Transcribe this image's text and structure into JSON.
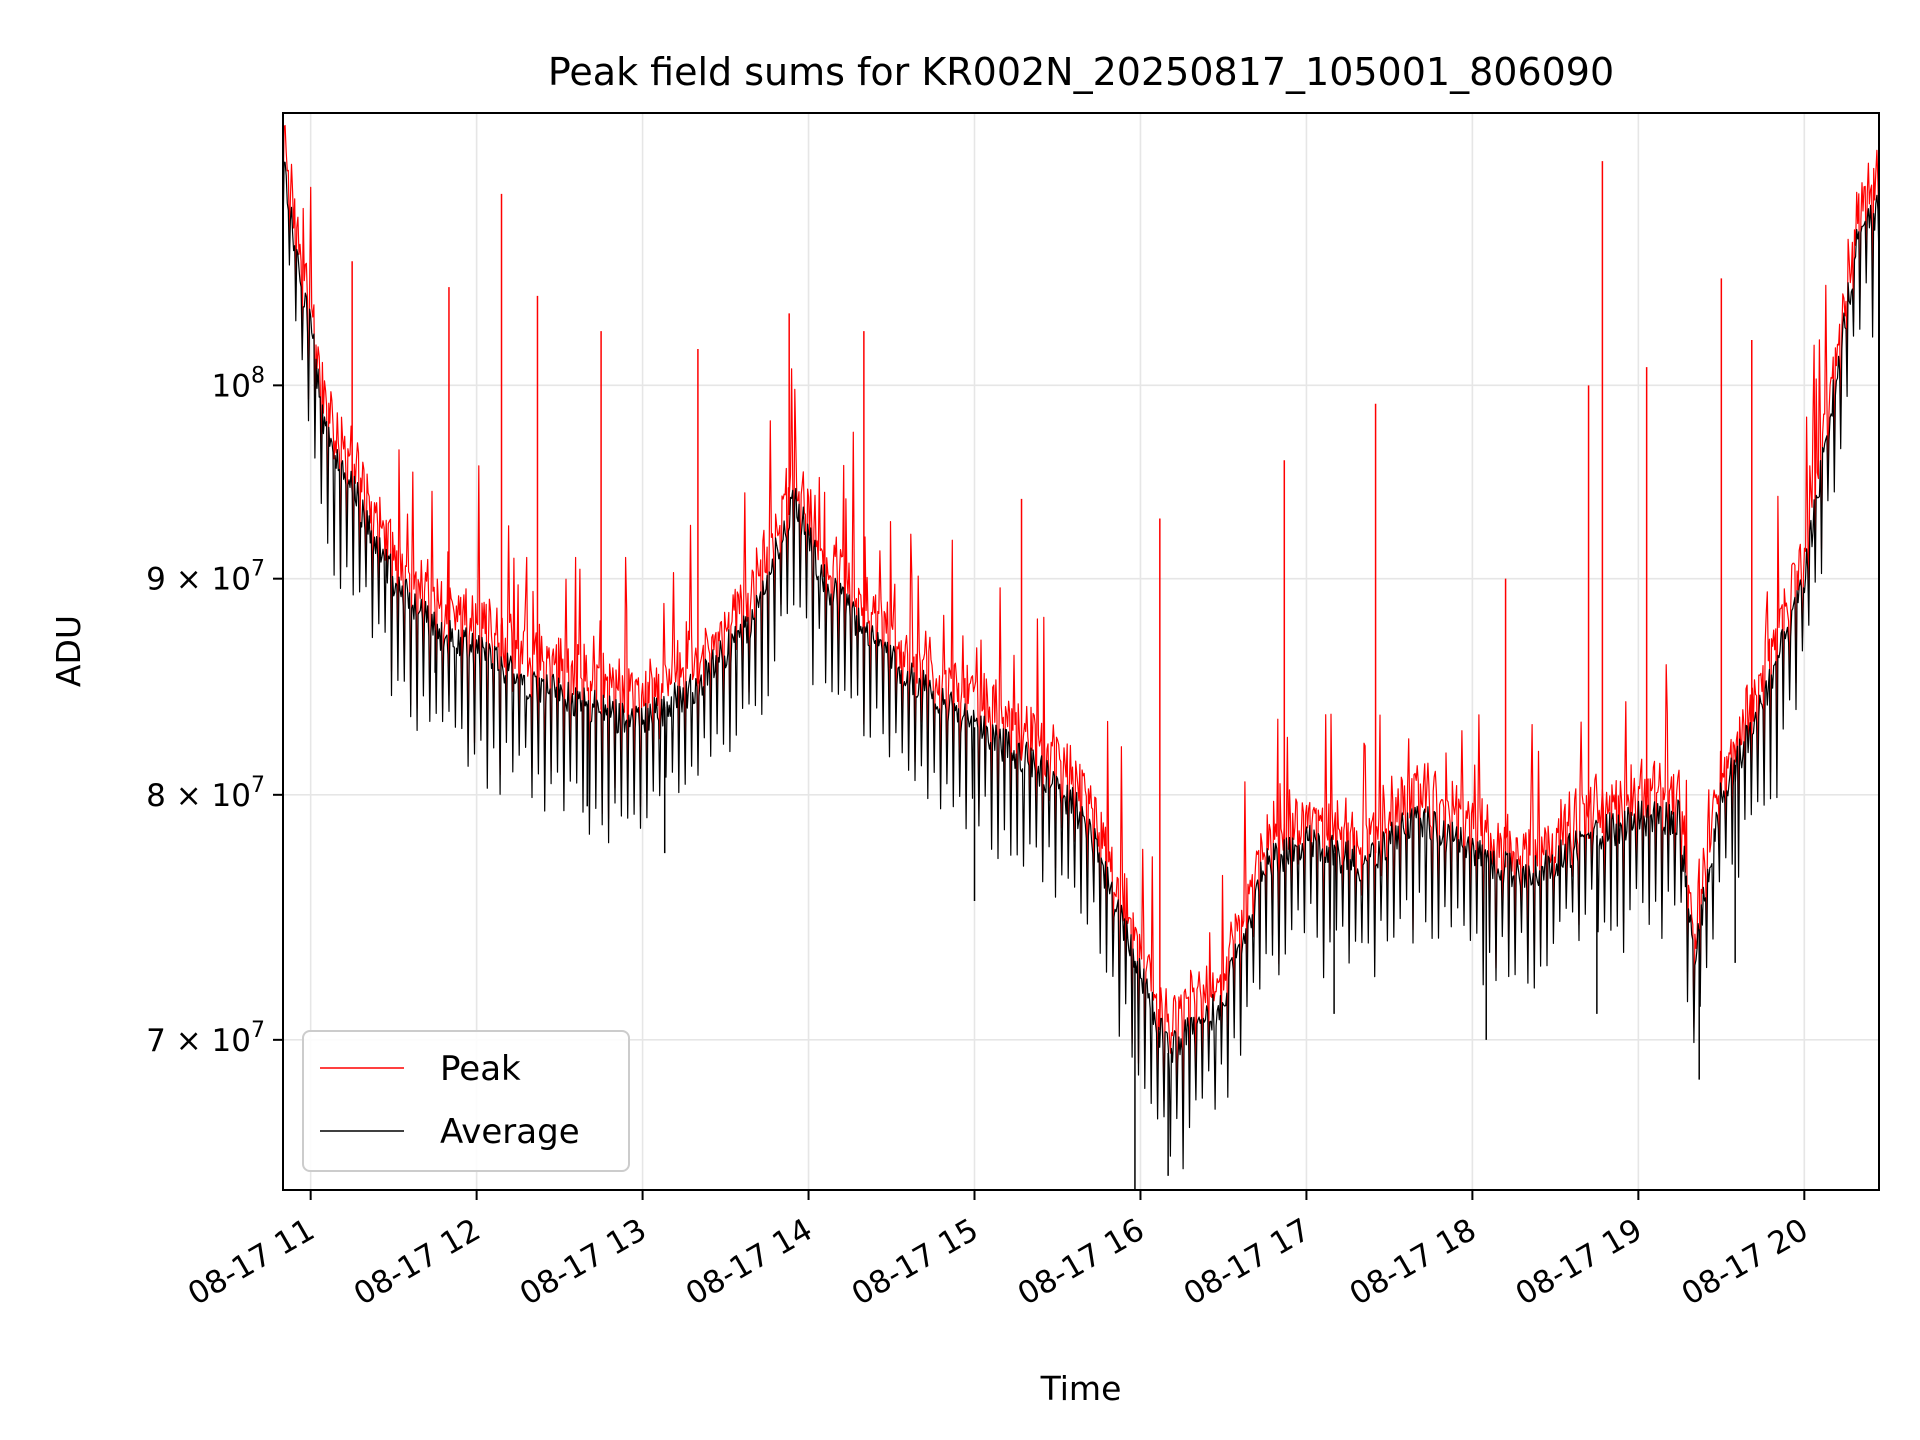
{
  "chart_data": {
    "type": "line",
    "title": "Peak field sums for KR002N_20250817_105001_806090",
    "xlabel": "Time",
    "ylabel": "ADU",
    "y_scale": "log",
    "grid": true,
    "legend_location": "lower-left",
    "xlim": [
      "2025-08-17 10:50",
      "2025-08-17 20:27"
    ],
    "ylim": [
      64500000,
      116000000
    ],
    "x_ticks": [
      {
        "value": "2025-08-17 11:00",
        "label": "08-17 11"
      },
      {
        "value": "2025-08-17 12:00",
        "label": "08-17 12"
      },
      {
        "value": "2025-08-17 13:00",
        "label": "08-17 13"
      },
      {
        "value": "2025-08-17 14:00",
        "label": "08-17 14"
      },
      {
        "value": "2025-08-17 15:00",
        "label": "08-17 15"
      },
      {
        "value": "2025-08-17 16:00",
        "label": "08-17 16"
      },
      {
        "value": "2025-08-17 17:00",
        "label": "08-17 17"
      },
      {
        "value": "2025-08-17 18:00",
        "label": "08-17 18"
      },
      {
        "value": "2025-08-17 19:00",
        "label": "08-17 19"
      },
      {
        "value": "2025-08-17 20:00",
        "label": "08-17 20"
      }
    ],
    "y_ticks": [
      {
        "value": 70000000,
        "mantissa": "7",
        "base": "10",
        "exp": "7"
      },
      {
        "value": 80000000,
        "mantissa": "8",
        "base": "10",
        "exp": "7"
      },
      {
        "value": 90000000,
        "mantissa": "9",
        "base": "10",
        "exp": "7"
      },
      {
        "value": 100000000,
        "mantissa": "",
        "base": "10",
        "exp": "8"
      }
    ],
    "baseline_time": [
      "2025-08-17 10:50",
      "2025-08-17 10:55",
      "2025-08-17 11:00",
      "2025-08-17 11:05",
      "2025-08-17 11:10",
      "2025-08-17 11:20",
      "2025-08-17 11:30",
      "2025-08-17 11:45",
      "2025-08-17 12:00",
      "2025-08-17 12:20",
      "2025-08-17 12:40",
      "2025-08-17 13:00",
      "2025-08-17 13:20",
      "2025-08-17 13:40",
      "2025-08-17 13:55",
      "2025-08-17 14:05",
      "2025-08-17 14:30",
      "2025-08-17 15:00",
      "2025-08-17 15:20",
      "2025-08-17 15:40",
      "2025-08-17 15:55",
      "2025-08-17 16:10",
      "2025-08-17 16:30",
      "2025-08-17 16:45",
      "2025-08-17 17:00",
      "2025-08-17 17:20",
      "2025-08-17 17:40",
      "2025-08-17 18:00",
      "2025-08-17 18:20",
      "2025-08-17 18:40",
      "2025-08-17 19:00",
      "2025-08-17 19:15",
      "2025-08-17 19:20",
      "2025-08-17 19:30",
      "2025-08-17 19:45",
      "2025-08-17 20:00",
      "2025-08-17 20:10",
      "2025-08-17 20:20",
      "2025-08-17 20:27"
    ],
    "baseline_adu": [
      113000000,
      107000000,
      103000000,
      98000000,
      96000000,
      93000000,
      90000000,
      87500000,
      86500000,
      85000000,
      84000000,
      83200000,
      85000000,
      88000000,
      94000000,
      90000000,
      86000000,
      83000000,
      81500000,
      79000000,
      74000000,
      69500000,
      71500000,
      77000000,
      78000000,
      77000000,
      79000000,
      77500000,
      76500000,
      78000000,
      79000000,
      79000000,
      73000000,
      80000000,
      84000000,
      90000000,
      99000000,
      109000000,
      110000000
    ],
    "series": [
      {
        "name": "Peak",
        "color": "#ff0000",
        "spikes": [
          {
            "time": "2025-08-17 11:15",
            "adu": 107000000
          },
          {
            "time": "2025-08-17 11:50",
            "adu": 105500000
          },
          {
            "time": "2025-08-17 12:09",
            "adu": 111000000
          },
          {
            "time": "2025-08-17 12:22",
            "adu": 105000000
          },
          {
            "time": "2025-08-17 12:45",
            "adu": 103000000
          },
          {
            "time": "2025-08-17 13:20",
            "adu": 102000000
          },
          {
            "time": "2025-08-17 13:53",
            "adu": 104000000
          },
          {
            "time": "2025-08-17 14:20",
            "adu": 103000000
          },
          {
            "time": "2025-08-17 15:17",
            "adu": 94000000
          },
          {
            "time": "2025-08-17 16:07",
            "adu": 93000000
          },
          {
            "time": "2025-08-17 16:52",
            "adu": 96000000
          },
          {
            "time": "2025-08-17 17:25",
            "adu": 99000000
          },
          {
            "time": "2025-08-17 18:12",
            "adu": 90000000
          },
          {
            "time": "2025-08-17 18:42",
            "adu": 100000000
          },
          {
            "time": "2025-08-17 18:47",
            "adu": 113000000
          },
          {
            "time": "2025-08-17 19:03",
            "adu": 101000000
          },
          {
            "time": "2025-08-17 19:30",
            "adu": 106000000
          },
          {
            "time": "2025-08-17 19:41",
            "adu": 102500000
          }
        ]
      },
      {
        "name": "Average",
        "color": "#000000",
        "dips": [
          {
            "time": "2025-08-17 11:45",
            "adu": 85500000
          },
          {
            "time": "2025-08-17 12:40",
            "adu": 79500000
          },
          {
            "time": "2025-08-17 13:08",
            "adu": 77500000
          },
          {
            "time": "2025-08-17 15:00",
            "adu": 75500000
          },
          {
            "time": "2025-08-17 15:58",
            "adu": 64500000
          },
          {
            "time": "2025-08-17 16:10",
            "adu": 65000000
          },
          {
            "time": "2025-08-17 17:10",
            "adu": 71000000
          },
          {
            "time": "2025-08-17 18:05",
            "adu": 70000000
          },
          {
            "time": "2025-08-17 18:45",
            "adu": 71000000
          },
          {
            "time": "2025-08-17 19:22",
            "adu": 68500000
          },
          {
            "time": "2025-08-17 19:35",
            "adu": 73000000
          }
        ]
      }
    ]
  }
}
